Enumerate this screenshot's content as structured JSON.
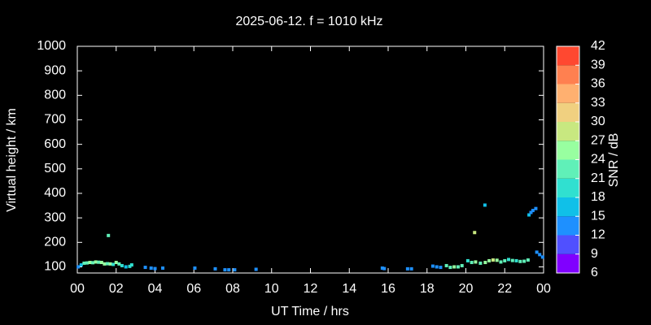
{
  "chart_data": {
    "type": "scatter",
    "title": "2025-06-12. f = 1010 kHz",
    "x_label": "UT Time / hrs",
    "y_label": "Virtual height / km",
    "colorbar_label": "SNR / dB",
    "x": [
      0.05,
      0.2,
      0.35,
      0.5,
      0.65,
      0.8,
      0.95,
      1.1,
      1.25,
      1.4,
      1.55,
      1.7,
      1.6,
      1.85,
      2.0,
      2.15,
      2.3,
      2.5,
      2.7,
      2.8,
      3.5,
      3.8,
      4.0,
      4.4,
      6.05,
      7.1,
      7.6,
      7.8,
      8.1,
      9.2,
      15.7,
      15.8,
      17.0,
      17.2,
      18.3,
      18.5,
      18.7,
      19.0,
      19.2,
      19.4,
      19.6,
      19.8,
      20.1,
      20.3,
      20.5,
      20.45,
      20.75,
      21.0,
      20.98,
      21.2,
      21.4,
      21.6,
      21.8,
      22.0,
      22.2,
      22.4,
      22.6,
      22.8,
      23.0,
      23.2,
      23.25,
      23.35,
      23.45,
      23.6,
      23.65,
      23.8,
      23.95
    ],
    "values": [
      100,
      108,
      115,
      116,
      118,
      117,
      120,
      119,
      118,
      112,
      113,
      112,
      228,
      110,
      118,
      112,
      105,
      100,
      102,
      108,
      98,
      95,
      93,
      95,
      95,
      92,
      88,
      88,
      88,
      90,
      95,
      93,
      92,
      92,
      103,
      100,
      98,
      105,
      98,
      100,
      100,
      105,
      125,
      118,
      120,
      240,
      115,
      118,
      352,
      125,
      128,
      127,
      120,
      125,
      130,
      126,
      125,
      122,
      123,
      128,
      312,
      322,
      330,
      338,
      160,
      150,
      140
    ],
    "snr": [
      12,
      15,
      21,
      21,
      24,
      21,
      24,
      21,
      24,
      24,
      21,
      24,
      21,
      18,
      24,
      21,
      18,
      15,
      18,
      18,
      12,
      12,
      12,
      12,
      12,
      12,
      12,
      12,
      12,
      12,
      12,
      12,
      12,
      12,
      12,
      12,
      12,
      21,
      21,
      24,
      21,
      21,
      18,
      21,
      24,
      27,
      21,
      24,
      15,
      24,
      27,
      24,
      21,
      21,
      18,
      21,
      18,
      21,
      21,
      21,
      15,
      12,
      12,
      12,
      12,
      12,
      12
    ],
    "xlim": [
      0,
      24
    ],
    "xticks": [
      {
        "value": 0,
        "label": "00"
      },
      {
        "value": 2,
        "label": "02"
      },
      {
        "value": 4,
        "label": "04"
      },
      {
        "value": 6,
        "label": "06"
      },
      {
        "value": 8,
        "label": "08"
      },
      10,
      12,
      14,
      16,
      18,
      20,
      22,
      {
        "value": 24,
        "label": "00"
      }
    ],
    "ylim": [
      75,
      1000
    ],
    "yticks": [
      100,
      200,
      300,
      400,
      500,
      600,
      700,
      800,
      900,
      1000
    ],
    "cticks": [
      6,
      9,
      12,
      15,
      18,
      21,
      24,
      27,
      30,
      33,
      36,
      39,
      42
    ],
    "ccolors": [
      "#8000ff",
      "#5050ff",
      "#1e90ff",
      "#10c0e8",
      "#30e0d0",
      "#60f0b8",
      "#98ffa0",
      "#c8e880",
      "#f0d080",
      "#ffb070",
      "#ff8050",
      "#ff4830"
    ]
  }
}
